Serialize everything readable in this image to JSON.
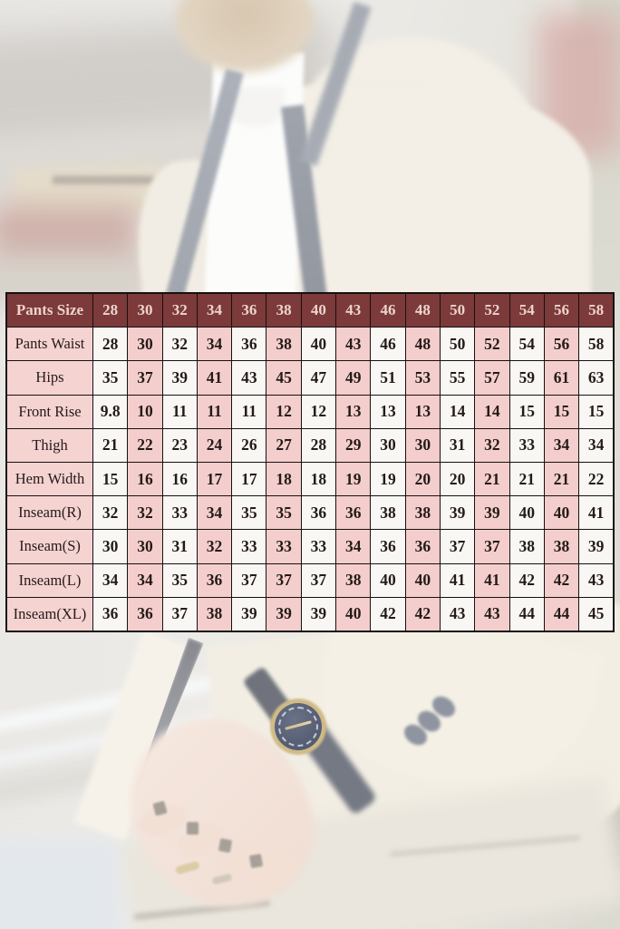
{
  "colors": {
    "header_bg": "#7c3a3a",
    "header_text": "#eed3cd",
    "pink_cell": "#f3cecc",
    "white_cell": "#f8f7f4",
    "label_cell": "#f4d3d1",
    "border": "#17110f",
    "cell_text": "#241a18"
  },
  "chart_data": {
    "type": "table",
    "title": "Pants Size",
    "header": [
      "Pants Size",
      "28",
      "30",
      "32",
      "34",
      "36",
      "38",
      "40",
      "43",
      "46",
      "48",
      "50",
      "52",
      "54",
      "56",
      "58"
    ],
    "rows": [
      {
        "label": "Pants Waist",
        "values": [
          "28",
          "30",
          "32",
          "34",
          "36",
          "38",
          "40",
          "43",
          "46",
          "48",
          "50",
          "52",
          "54",
          "56",
          "58"
        ]
      },
      {
        "label": "Hips",
        "values": [
          "35",
          "37",
          "39",
          "41",
          "43",
          "45",
          "47",
          "49",
          "51",
          "53",
          "55",
          "57",
          "59",
          "61",
          "63"
        ]
      },
      {
        "label": "Front Rise",
        "values": [
          "9.8",
          "10",
          "11",
          "11",
          "11",
          "12",
          "12",
          "13",
          "13",
          "13",
          "14",
          "14",
          "15",
          "15",
          "15"
        ]
      },
      {
        "label": "Thigh",
        "values": [
          "21",
          "22",
          "23",
          "24",
          "26",
          "27",
          "28",
          "29",
          "30",
          "30",
          "31",
          "32",
          "33",
          "34",
          "34"
        ]
      },
      {
        "label": "Hem Width",
        "values": [
          "15",
          "16",
          "16",
          "17",
          "17",
          "18",
          "18",
          "19",
          "19",
          "20",
          "20",
          "21",
          "21",
          "21",
          "22"
        ]
      },
      {
        "label": "Inseam(R)",
        "values": [
          "32",
          "32",
          "33",
          "34",
          "35",
          "35",
          "36",
          "36",
          "38",
          "38",
          "39",
          "39",
          "40",
          "40",
          "41"
        ]
      },
      {
        "label": "Inseam(S)",
        "values": [
          "30",
          "30",
          "31",
          "32",
          "33",
          "33",
          "33",
          "34",
          "36",
          "36",
          "37",
          "37",
          "38",
          "38",
          "39"
        ]
      },
      {
        "label": "Inseam(L)",
        "values": [
          "34",
          "34",
          "35",
          "36",
          "37",
          "37",
          "37",
          "38",
          "40",
          "40",
          "41",
          "41",
          "42",
          "42",
          "43"
        ]
      },
      {
        "label": "Inseam(XL)",
        "values": [
          "36",
          "36",
          "37",
          "38",
          "39",
          "39",
          "39",
          "40",
          "42",
          "42",
          "43",
          "43",
          "44",
          "44",
          "45"
        ]
      }
    ]
  }
}
